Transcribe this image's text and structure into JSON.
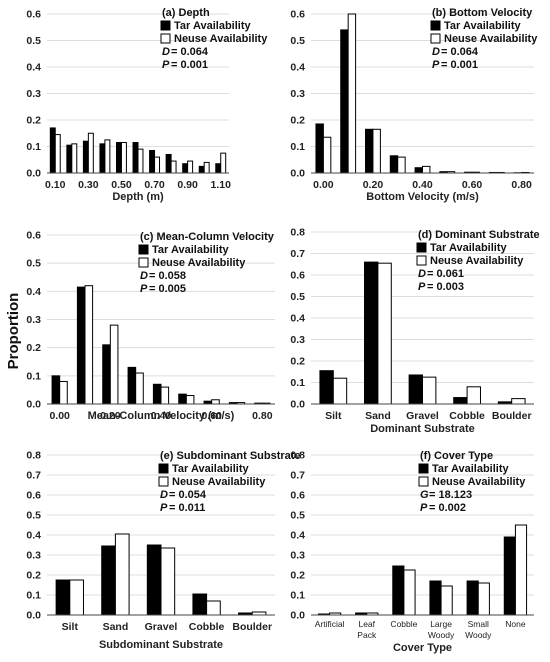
{
  "figure": {
    "y_axis_label": "Proportion"
  },
  "chart_data": [
    {
      "type": "bar",
      "id": "a",
      "title": "(a) Depth",
      "xlabel": "Depth (m)",
      "categories": [
        "0.10",
        "0.20",
        "0.30",
        "0.40",
        "0.50",
        "0.60",
        "0.70",
        "0.80",
        "0.90",
        "1.00",
        "1.10"
      ],
      "x_tick_labels": [
        "0.10",
        "",
        "0.30",
        "",
        "0.50",
        "",
        "0.70",
        "",
        "0.90",
        "",
        "1.10"
      ],
      "y_ticks": [
        "0.0",
        "0.1",
        "0.2",
        "0.3",
        "0.4",
        "0.5",
        "0.6"
      ],
      "ylim": [
        0,
        0.6
      ],
      "series": [
        {
          "name": "Tar Availability",
          "color": "#000000",
          "values": [
            0.17,
            0.105,
            0.12,
            0.11,
            0.115,
            0.115,
            0.085,
            0.07,
            0.035,
            0.025,
            0.035
          ]
        },
        {
          "name": "Neuse Availability",
          "color": "#ffffff",
          "values": [
            0.145,
            0.11,
            0.15,
            0.125,
            0.115,
            0.09,
            0.06,
            0.045,
            0.045,
            0.04,
            0.075
          ]
        }
      ],
      "stats": [
        {
          "key": "D",
          "value": "0.064"
        },
        {
          "key": "P",
          "value": "0.001"
        }
      ],
      "grid": true,
      "legend": "top-right"
    },
    {
      "type": "bar",
      "id": "b",
      "title": "(b) Bottom Velocity",
      "xlabel": "Bottom Velocity (m/s)",
      "categories": [
        "0.00",
        "0.10",
        "0.20",
        "0.30",
        "0.40",
        "0.50",
        "0.60",
        "0.70",
        "0.80"
      ],
      "x_tick_labels": [
        "0.00",
        "",
        "0.20",
        "",
        "0.40",
        "",
        "0.60",
        "",
        "0.80"
      ],
      "y_ticks": [
        "0.0",
        "0.1",
        "0.2",
        "0.3",
        "0.4",
        "0.5",
        "0.6"
      ],
      "ylim": [
        0,
        0.6
      ],
      "series": [
        {
          "name": "Tar Availability",
          "color": "#000000",
          "values": [
            0.185,
            0.54,
            0.165,
            0.065,
            0.02,
            0.005,
            0.003,
            0.002,
            0.001
          ]
        },
        {
          "name": "Neuse Availability",
          "color": "#ffffff",
          "values": [
            0.135,
            0.6,
            0.165,
            0.06,
            0.025,
            0.005,
            0.003,
            0.002,
            0.002
          ]
        }
      ],
      "stats": [
        {
          "key": "D",
          "value": "0.064"
        },
        {
          "key": "P",
          "value": "0.001"
        }
      ],
      "grid": true,
      "legend": "top-right"
    },
    {
      "type": "bar",
      "id": "c",
      "title": "(c) Mean-Column Velocity",
      "xlabel": "Mean-Column Velocity (m/s)",
      "categories": [
        "0.00",
        "0.10",
        "0.20",
        "0.30",
        "0.40",
        "0.50",
        "0.60",
        "0.70",
        "0.80"
      ],
      "x_tick_labels": [
        "0.00",
        "",
        "0.20",
        "",
        "0.40",
        "",
        "0.60",
        "",
        "0.80"
      ],
      "y_ticks": [
        "0.0",
        "0.1",
        "0.2",
        "0.3",
        "0.4",
        "0.5",
        "0.6"
      ],
      "ylim": [
        0,
        0.6
      ],
      "series": [
        {
          "name": "Tar Availability",
          "color": "#000000",
          "values": [
            0.1,
            0.415,
            0.21,
            0.13,
            0.07,
            0.035,
            0.01,
            0.005,
            0.003
          ]
        },
        {
          "name": "Neuse Availability",
          "color": "#ffffff",
          "values": [
            0.08,
            0.42,
            0.28,
            0.11,
            0.06,
            0.03,
            0.015,
            0.005,
            0.003
          ]
        }
      ],
      "stats": [
        {
          "key": "D",
          "value": "0.058"
        },
        {
          "key": "P",
          "value": "0.005"
        }
      ],
      "grid": true,
      "legend": "top-right"
    },
    {
      "type": "bar",
      "id": "d",
      "title": "(d) Dominant Substrate",
      "xlabel": "Dominant Substrate",
      "categories": [
        "Silt",
        "Sand",
        "Gravel",
        "Cobble",
        "Boulder"
      ],
      "x_tick_labels": [
        "Silt",
        "Sand",
        "Gravel",
        "Cobble",
        "Boulder"
      ],
      "y_ticks": [
        "0.0",
        "0.1",
        "0.2",
        "0.3",
        "0.4",
        "0.5",
        "0.6",
        "0.7",
        "0.8"
      ],
      "ylim": [
        0,
        0.8
      ],
      "series": [
        {
          "name": "Tar Availability",
          "color": "#000000",
          "values": [
            0.155,
            0.66,
            0.135,
            0.03,
            0.01
          ]
        },
        {
          "name": "Neuse Availability",
          "color": "#ffffff",
          "values": [
            0.12,
            0.655,
            0.125,
            0.08,
            0.025
          ]
        }
      ],
      "stats": [
        {
          "key": "D",
          "value": "0.061"
        },
        {
          "key": "P",
          "value": "0.003"
        }
      ],
      "grid": true,
      "legend": "top-right"
    },
    {
      "type": "bar",
      "id": "e",
      "title": "(e) Subdominant Substrate",
      "xlabel": "Subdominant Substrate",
      "categories": [
        "Silt",
        "Sand",
        "Gravel",
        "Cobble",
        "Boulder"
      ],
      "x_tick_labels": [
        "Silt",
        "Sand",
        "Gravel",
        "Cobble",
        "Boulder"
      ],
      "y_ticks": [
        "0.0",
        "0.1",
        "0.2",
        "0.3",
        "0.4",
        "0.5",
        "0.6",
        "0.7",
        "0.8"
      ],
      "ylim": [
        0,
        0.8
      ],
      "series": [
        {
          "name": "Tar Availability",
          "color": "#000000",
          "values": [
            0.175,
            0.345,
            0.35,
            0.105,
            0.01
          ]
        },
        {
          "name": "Neuse Availability",
          "color": "#ffffff",
          "values": [
            0.175,
            0.405,
            0.335,
            0.07,
            0.015
          ]
        }
      ],
      "stats": [
        {
          "key": "D",
          "value": "0.054"
        },
        {
          "key": "P",
          "value": "0.011"
        }
      ],
      "grid": true,
      "legend": "top-right"
    },
    {
      "type": "bar",
      "id": "f",
      "title": "(f) Cover Type",
      "xlabel": "Cover Type",
      "categories": [
        "Artificial",
        "Leaf Pack",
        "Cobble",
        "Large Woody",
        "Small Woody",
        "None"
      ],
      "x_tick_labels": [
        [
          "Artificial"
        ],
        [
          "Leaf",
          "Pack"
        ],
        [
          "Cobble"
        ],
        [
          "Large",
          "Woody"
        ],
        [
          "Small",
          "Woody"
        ],
        [
          "None"
        ]
      ],
      "y_ticks": [
        "0.0",
        "0.1",
        "0.2",
        "0.3",
        "0.4",
        "0.5",
        "0.6",
        "0.7",
        "0.8"
      ],
      "ylim": [
        0,
        0.8
      ],
      "series": [
        {
          "name": "Tar Availability",
          "color": "#000000",
          "values": [
            0.005,
            0.01,
            0.245,
            0.17,
            0.17,
            0.39
          ]
        },
        {
          "name": "Neuse Availability",
          "color": "#ffffff",
          "values": [
            0.01,
            0.01,
            0.225,
            0.145,
            0.16,
            0.45
          ]
        }
      ],
      "stats": [
        {
          "key": "G",
          "value": "18.123"
        },
        {
          "key": "P",
          "value": "0.002"
        }
      ],
      "grid": true,
      "legend": "top-right"
    }
  ]
}
